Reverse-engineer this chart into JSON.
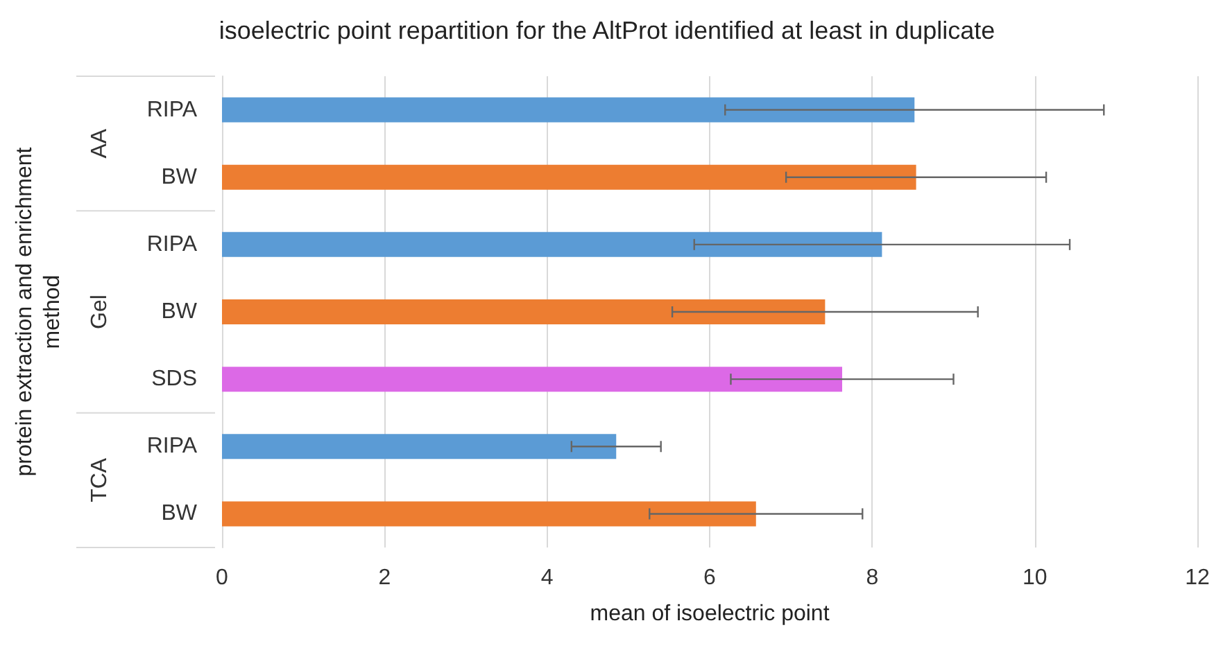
{
  "chart_data": {
    "type": "bar",
    "orientation": "horizontal",
    "title": "isoelectric point repartition for the AltProt identified at least in duplicate",
    "xlabel": "mean of isoelectric point",
    "ylabel": "protein extraction and enrichment\nmethod",
    "categories": [
      "RIPA",
      "BW",
      "RIPA",
      "BW",
      "SDS",
      "RIPA",
      "BW"
    ],
    "values": [
      8.52,
      8.54,
      8.12,
      7.42,
      7.63,
      4.85,
      6.57
    ],
    "colors": [
      "#5b9bd5",
      "#ed7d31",
      "#5b9bd5",
      "#ed7d31",
      "#dc69e6",
      "#5b9bd5",
      "#ed7d31"
    ],
    "errors": [
      2.33,
      1.6,
      2.31,
      1.88,
      1.37,
      0.55,
      1.31
    ],
    "annotations": [
      "AA",
      "Gel",
      "TCA"
    ],
    "xlim": [
      0,
      12
    ],
    "xticks": [
      0,
      2,
      4,
      6,
      8,
      10,
      12
    ],
    "grid": "x"
  }
}
